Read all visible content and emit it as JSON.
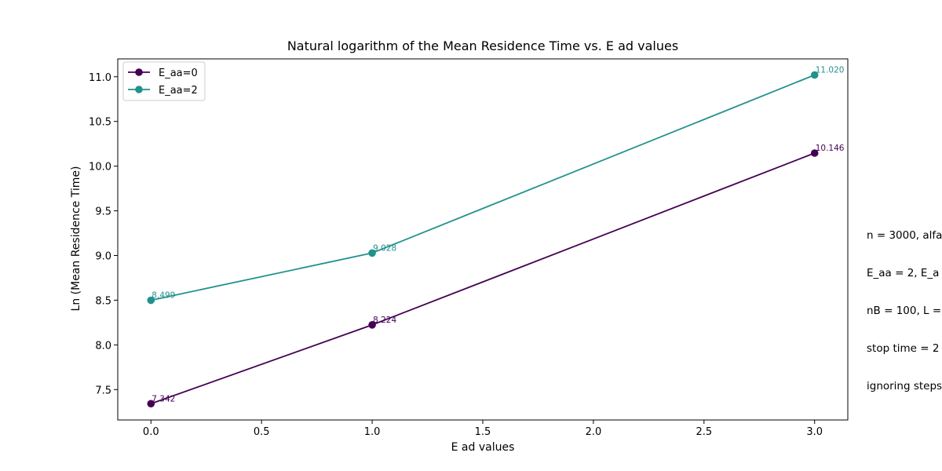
{
  "chart_data": {
    "type": "line",
    "title": "Natural logarithm of the Mean Residence Time vs. E ad values",
    "xlabel": "E ad values",
    "ylabel": "Ln (Mean Residence Time)",
    "xlim": [
      -0.15,
      3.15
    ],
    "ylim": [
      7.16,
      11.2
    ],
    "xticks": [
      0.0,
      0.5,
      1.0,
      1.5,
      2.0,
      2.5,
      3.0
    ],
    "xtick_labels": [
      "0.0",
      "0.5",
      "1.0",
      "1.5",
      "2.0",
      "2.5",
      "3.0"
    ],
    "yticks": [
      7.5,
      8.0,
      8.5,
      9.0,
      9.5,
      10.0,
      10.5,
      11.0
    ],
    "ytick_labels": [
      "7.5",
      "8.0",
      "8.5",
      "9.0",
      "9.5",
      "10.0",
      "10.5",
      "11.0"
    ],
    "grid": false,
    "legend_position": "top-left",
    "series": [
      {
        "name": "E_aa=0",
        "color": "#440154",
        "x": [
          0,
          1,
          3
        ],
        "values": [
          7.342,
          8.224,
          10.146
        ],
        "labels": [
          "7.342",
          "8.224",
          "10.146"
        ]
      },
      {
        "name": "E_aa=2",
        "color": "#21918c",
        "x": [
          0,
          1,
          3
        ],
        "values": [
          8.499,
          9.028,
          11.02
        ],
        "labels": [
          "8.499",
          "9.028",
          "11.020"
        ]
      }
    ]
  },
  "side_note": {
    "lines": [
      "n = 3000, alfa",
      "E_aa = 2, E_a",
      "nB = 100, L =",
      "stop time = 2",
      "ignoring steps"
    ]
  }
}
